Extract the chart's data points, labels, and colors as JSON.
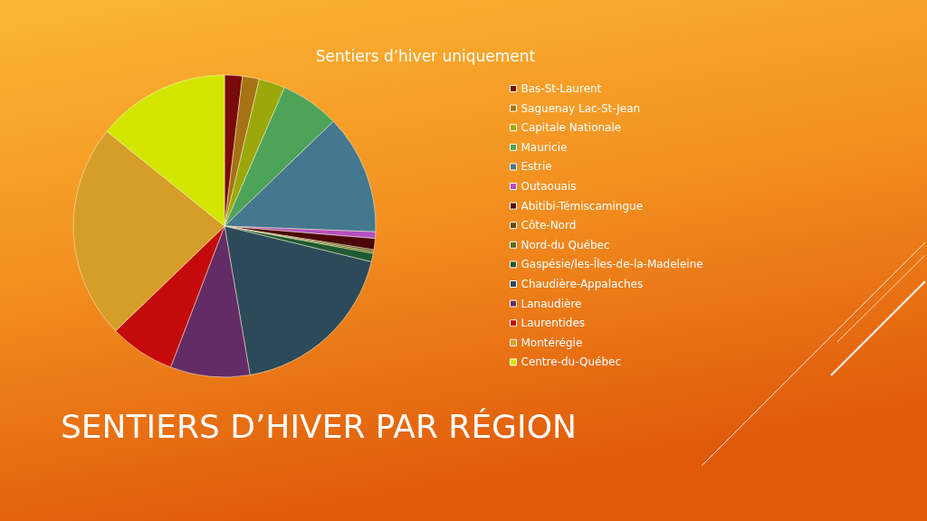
{
  "chart_data": {
    "type": "pie",
    "title": "Sentiers d’hiver uniquement",
    "subtitle": "SENTIERS D’HIVER PAR RÉGION",
    "legend": "right",
    "categories": [
      "Bas-St-Laurent",
      "Saguenay Lac-St-Jean",
      "Capitale Nationale",
      "Mauricie",
      "Estrie",
      "Outaouais",
      "Abitibi-Témiscamingue",
      "Côte-Nord",
      "Nord-du Québec",
      "Gaspésie/les-Îles-de-la-Madeleine",
      "Chaudière-Appalaches",
      "Lanaudière",
      "Laurentides",
      "Montérégie",
      "Centre-du-Québec"
    ],
    "values": [
      1.9,
      1.8,
      2.8,
      6.3,
      12.8,
      0.7,
      1.2,
      0.2,
      0.2,
      0.9,
      18.5,
      8.5,
      7.0,
      23.0,
      14.2
    ],
    "colors": [
      "#7a0a0a",
      "#a67214",
      "#9aa80a",
      "#4ea35a",
      "#44788f",
      "#b44fc0",
      "#4a0808",
      "#5c4a1a",
      "#5a6b14",
      "#1e5a30",
      "#2c4a5a",
      "#632c66",
      "#c40a0a",
      "#d69e28",
      "#d2e600"
    ]
  }
}
